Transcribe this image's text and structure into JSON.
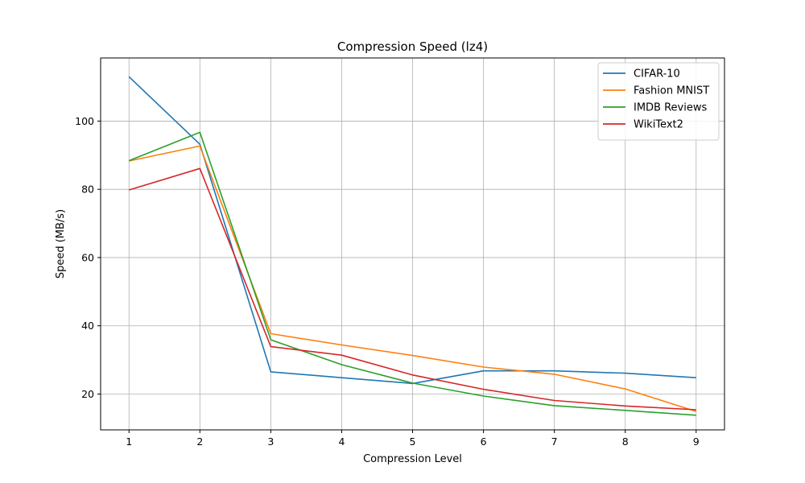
{
  "chart_data": {
    "type": "line",
    "title": "Compression Speed (lz4)",
    "xlabel": "Compression Level",
    "ylabel": "Speed (MB/s)",
    "x": [
      1,
      2,
      3,
      4,
      5,
      6,
      7,
      8,
      9
    ],
    "xlim": [
      0.6,
      9.4
    ],
    "ylim": [
      9.5,
      118.5
    ],
    "yticks": [
      20,
      40,
      60,
      80,
      100
    ],
    "xticks": [
      1,
      2,
      3,
      4,
      5,
      6,
      7,
      8,
      9
    ],
    "grid": true,
    "legend_position": "top-right",
    "series": [
      {
        "name": "CIFAR-10",
        "color": "#1f77b4",
        "values": [
          113.0,
          93.2,
          26.5,
          24.8,
          23.1,
          26.8,
          26.8,
          26.1,
          24.8
        ]
      },
      {
        "name": "Fashion MNIST",
        "color": "#ff7f0e",
        "values": [
          88.3,
          92.7,
          37.7,
          34.4,
          31.3,
          27.9,
          25.8,
          21.5,
          14.9
        ]
      },
      {
        "name": "IMDB Reviews",
        "color": "#2ca02c",
        "values": [
          88.4,
          96.7,
          35.9,
          28.6,
          23.2,
          19.4,
          16.6,
          15.2,
          13.8
        ]
      },
      {
        "name": "WikiText2",
        "color": "#d62728",
        "values": [
          79.8,
          86.1,
          33.9,
          31.4,
          25.6,
          21.4,
          18.1,
          16.5,
          15.4
        ]
      }
    ]
  }
}
